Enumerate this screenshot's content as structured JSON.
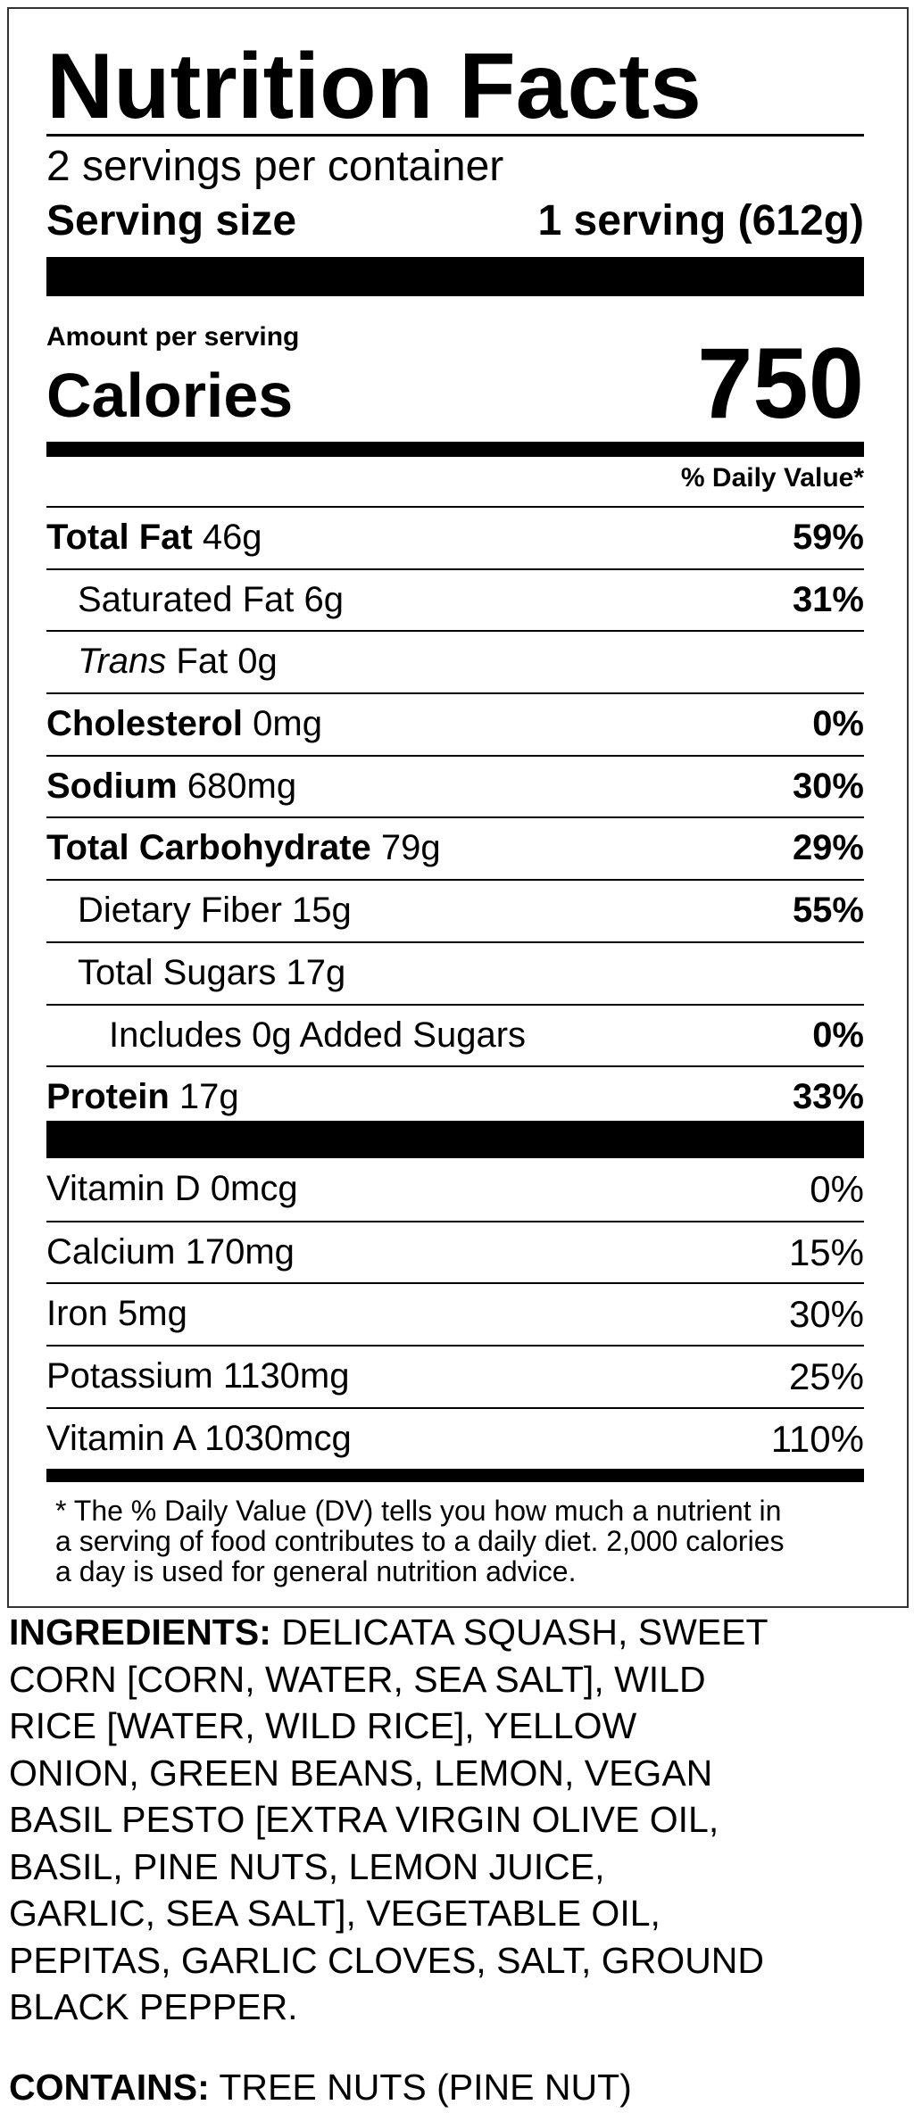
{
  "label": {
    "title": "Nutrition Facts",
    "servings_per_container": "2 servings per container",
    "serving_size_label": "Serving size",
    "serving_size_value": "1 serving (612g)",
    "amount_per_serving": "Amount per serving",
    "calories_label": "Calories",
    "calories_value": "750",
    "daily_value_header": "% Daily Value*",
    "nutrients": [
      {
        "name": "Total Fat",
        "amount": " 46g",
        "dv": "59%"
      },
      {
        "name": "Saturated Fat 6g",
        "amount": "",
        "dv": "31%"
      },
      {
        "name": "Trans",
        "amount": " Fat 0g",
        "dv": ""
      },
      {
        "name": "Cholesterol",
        "amount": " 0mg",
        "dv": "0%"
      },
      {
        "name": "Sodium",
        "amount": " 680mg",
        "dv": "30%"
      },
      {
        "name": "Total Carbohydrate",
        "amount": " 79g",
        "dv": "29%"
      },
      {
        "name": "Dietary Fiber 15g",
        "amount": "",
        "dv": "55%"
      },
      {
        "name": "Total Sugars 17g",
        "amount": "",
        "dv": ""
      },
      {
        "name": "Includes 0g Added Sugars",
        "amount": "",
        "dv": "0%"
      },
      {
        "name": "Protein",
        "amount": " 17g",
        "dv": "33%"
      }
    ],
    "vitamins": [
      {
        "name": "Vitamin D 0mcg",
        "dv": "0%"
      },
      {
        "name": "Calcium 170mg",
        "dv": "15%"
      },
      {
        "name": "Iron 5mg",
        "dv": "30%"
      },
      {
        "name": "Potassium 1130mg",
        "dv": "25%"
      },
      {
        "name": "Vitamin A 1030mcg",
        "dv": "110%"
      }
    ],
    "footnote_lines": [
      "* The % Daily Value (DV) tells you how much a nutrient in",
      "a serving of food contributes to a daily diet. 2,000 calories",
      "a day is used for general nutrition advice."
    ]
  },
  "ingredients": {
    "label": "INGREDIENTS:",
    "lines": [
      " DELICATA SQUASH, SWEET",
      "CORN [CORN, WATER, SEA SALT], WILD",
      "RICE [WATER, WILD RICE], YELLOW",
      "ONION, GREEN BEANS, LEMON, VEGAN",
      "BASIL PESTO [EXTRA VIRGIN OLIVE OIL,",
      "BASIL, PINE NUTS, LEMON JUICE,",
      "GARLIC, SEA SALT], VEGETABLE OIL,",
      "PEPITAS, GARLIC CLOVES, SALT, GROUND",
      "BLACK PEPPER."
    ]
  },
  "contains": {
    "label": "CONTAINS:",
    "value": " TREE NUTS (PINE NUT)"
  }
}
